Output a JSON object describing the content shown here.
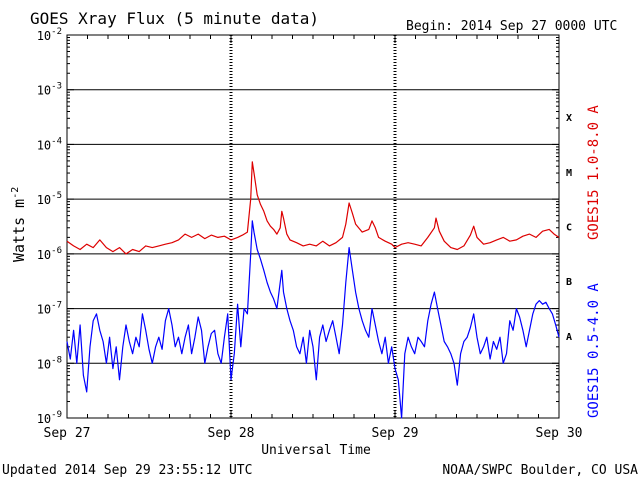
{
  "chart_data": {
    "type": "line",
    "title": "GOES Xray Flux (5 minute data)",
    "begin": "Begin:  2014 Sep 27 0000 UTC",
    "xlabel": "Universal Time",
    "ylabel": "Watts m",
    "ylabel_exponent": "-2",
    "footer_left": "Updated 2014 Sep 29 23:55:12 UTC",
    "footer_right": "NOAA/SWPC Boulder, CO USA",
    "x_ticks": [
      "Sep 27",
      "Sep 28",
      "Sep 29",
      "Sep 30"
    ],
    "x_range_days": [
      0,
      3
    ],
    "y_scale": "log",
    "y_ticks": [
      {
        "base": "10",
        "exp": "-9",
        "value": 1e-09
      },
      {
        "base": "10",
        "exp": "-8",
        "value": 1e-08
      },
      {
        "base": "10",
        "exp": "-7",
        "value": 1e-07
      },
      {
        "base": "10",
        "exp": "-6",
        "value": 1e-06
      },
      {
        "base": "10",
        "exp": "-5",
        "value": 1e-05
      },
      {
        "base": "10",
        "exp": "-4",
        "value": 0.0001
      },
      {
        "base": "10",
        "exp": "-3",
        "value": 0.001
      },
      {
        "base": "10",
        "exp": "-2",
        "value": 0.01
      }
    ],
    "ylim": [
      1e-09,
      0.01
    ],
    "flare_classes": [
      {
        "label": "A",
        "value": 3.16e-08
      },
      {
        "label": "B",
        "value": 3.16e-07
      },
      {
        "label": "C",
        "value": 3.16e-06
      },
      {
        "label": "M",
        "value": 3.16e-05
      },
      {
        "label": "X",
        "value": 0.000316
      }
    ],
    "series": [
      {
        "name": "GOES15 1.0-8.0 A",
        "color": "#dd0000",
        "points": [
          [
            0.0,
            1.7e-06
          ],
          [
            0.04,
            1.4e-06
          ],
          [
            0.08,
            1.2e-06
          ],
          [
            0.12,
            1.5e-06
          ],
          [
            0.16,
            1.3e-06
          ],
          [
            0.2,
            1.8e-06
          ],
          [
            0.24,
            1.3e-06
          ],
          [
            0.28,
            1.1e-06
          ],
          [
            0.32,
            1.3e-06
          ],
          [
            0.36,
            1e-06
          ],
          [
            0.4,
            1.2e-06
          ],
          [
            0.44,
            1.1e-06
          ],
          [
            0.48,
            1.4e-06
          ],
          [
            0.52,
            1.3e-06
          ],
          [
            0.56,
            1.4e-06
          ],
          [
            0.6,
            1.5e-06
          ],
          [
            0.64,
            1.6e-06
          ],
          [
            0.68,
            1.8e-06
          ],
          [
            0.72,
            2.3e-06
          ],
          [
            0.76,
            2e-06
          ],
          [
            0.8,
            2.3e-06
          ],
          [
            0.84,
            1.9e-06
          ],
          [
            0.88,
            2.2e-06
          ],
          [
            0.92,
            2e-06
          ],
          [
            0.96,
            2.1e-06
          ],
          [
            1.0,
            1.8e-06
          ],
          [
            1.04,
            2e-06
          ],
          [
            1.07,
            2.2e-06
          ],
          [
            1.1,
            2.5e-06
          ],
          [
            1.12,
            1e-05
          ],
          [
            1.13,
            4.8e-05
          ],
          [
            1.14,
            3e-05
          ],
          [
            1.16,
            1.2e-05
          ],
          [
            1.18,
            8e-06
          ],
          [
            1.2,
            6e-06
          ],
          [
            1.22,
            4e-06
          ],
          [
            1.24,
            3.2e-06
          ],
          [
            1.26,
            2.8e-06
          ],
          [
            1.28,
            2.3e-06
          ],
          [
            1.3,
            3e-06
          ],
          [
            1.31,
            6e-06
          ],
          [
            1.32,
            4.5e-06
          ],
          [
            1.34,
            2.3e-06
          ],
          [
            1.36,
            1.8e-06
          ],
          [
            1.4,
            1.6e-06
          ],
          [
            1.44,
            1.4e-06
          ],
          [
            1.48,
            1.5e-06
          ],
          [
            1.52,
            1.4e-06
          ],
          [
            1.56,
            1.7e-06
          ],
          [
            1.6,
            1.4e-06
          ],
          [
            1.64,
            1.6e-06
          ],
          [
            1.68,
            2e-06
          ],
          [
            1.7,
            3.5e-06
          ],
          [
            1.72,
            8.5e-06
          ],
          [
            1.74,
            5.5e-06
          ],
          [
            1.76,
            3.5e-06
          ],
          [
            1.8,
            2.5e-06
          ],
          [
            1.84,
            2.8e-06
          ],
          [
            1.86,
            4e-06
          ],
          [
            1.88,
            3e-06
          ],
          [
            1.9,
            2e-06
          ],
          [
            1.94,
            1.7e-06
          ],
          [
            1.98,
            1.5e-06
          ],
          [
            2.0,
            1.3e-06
          ],
          [
            2.04,
            1.5e-06
          ],
          [
            2.08,
            1.6e-06
          ],
          [
            2.12,
            1.5e-06
          ],
          [
            2.16,
            1.4e-06
          ],
          [
            2.2,
            2e-06
          ],
          [
            2.24,
            3e-06
          ],
          [
            2.25,
            4.5e-06
          ],
          [
            2.27,
            2.6e-06
          ],
          [
            2.3,
            1.7e-06
          ],
          [
            2.34,
            1.3e-06
          ],
          [
            2.38,
            1.2e-06
          ],
          [
            2.42,
            1.4e-06
          ],
          [
            2.46,
            2.2e-06
          ],
          [
            2.48,
            3.2e-06
          ],
          [
            2.5,
            2e-06
          ],
          [
            2.54,
            1.5e-06
          ],
          [
            2.58,
            1.6e-06
          ],
          [
            2.62,
            1.8e-06
          ],
          [
            2.66,
            2e-06
          ],
          [
            2.7,
            1.7e-06
          ],
          [
            2.74,
            1.8e-06
          ],
          [
            2.78,
            2.1e-06
          ],
          [
            2.82,
            2.3e-06
          ],
          [
            2.86,
            2e-06
          ],
          [
            2.9,
            2.6e-06
          ],
          [
            2.94,
            2.8e-06
          ],
          [
            2.97,
            2.3e-06
          ],
          [
            3.0,
            2e-06
          ]
        ]
      },
      {
        "name": "GOES15 0.5-4.0 A",
        "color": "#0000ff",
        "points": [
          [
            0.0,
            2.5e-08
          ],
          [
            0.02,
            1.2e-08
          ],
          [
            0.04,
            4e-08
          ],
          [
            0.06,
            1e-08
          ],
          [
            0.08,
            5e-08
          ],
          [
            0.1,
            6e-09
          ],
          [
            0.12,
            3e-09
          ],
          [
            0.14,
            2e-08
          ],
          [
            0.16,
            6e-08
          ],
          [
            0.18,
            8e-08
          ],
          [
            0.2,
            4e-08
          ],
          [
            0.22,
            2.5e-08
          ],
          [
            0.24,
            1e-08
          ],
          [
            0.26,
            3e-08
          ],
          [
            0.28,
            8e-09
          ],
          [
            0.3,
            2e-08
          ],
          [
            0.32,
            5e-09
          ],
          [
            0.34,
            2e-08
          ],
          [
            0.36,
            5e-08
          ],
          [
            0.38,
            2.5e-08
          ],
          [
            0.4,
            1.5e-08
          ],
          [
            0.42,
            3e-08
          ],
          [
            0.44,
            2e-08
          ],
          [
            0.46,
            8e-08
          ],
          [
            0.48,
            4e-08
          ],
          [
            0.5,
            1.8e-08
          ],
          [
            0.52,
            1e-08
          ],
          [
            0.54,
            2e-08
          ],
          [
            0.56,
            3e-08
          ],
          [
            0.58,
            1.8e-08
          ],
          [
            0.6,
            6e-08
          ],
          [
            0.62,
            1e-07
          ],
          [
            0.64,
            5e-08
          ],
          [
            0.66,
            2e-08
          ],
          [
            0.68,
            3e-08
          ],
          [
            0.7,
            1.5e-08
          ],
          [
            0.72,
            3e-08
          ],
          [
            0.74,
            5e-08
          ],
          [
            0.76,
            1.5e-08
          ],
          [
            0.78,
            3e-08
          ],
          [
            0.8,
            7e-08
          ],
          [
            0.82,
            4e-08
          ],
          [
            0.84,
            1e-08
          ],
          [
            0.86,
            2e-08
          ],
          [
            0.88,
            3.5e-08
          ],
          [
            0.9,
            4e-08
          ],
          [
            0.92,
            1.5e-08
          ],
          [
            0.94,
            1e-08
          ],
          [
            0.96,
            3e-08
          ],
          [
            0.98,
            8e-08
          ],
          [
            1.0,
            5e-09
          ],
          [
            1.02,
            1.5e-08
          ],
          [
            1.04,
            1.2e-07
          ],
          [
            1.06,
            2e-08
          ],
          [
            1.08,
            1e-07
          ],
          [
            1.1,
            8e-08
          ],
          [
            1.12,
            1e-06
          ],
          [
            1.13,
            4e-06
          ],
          [
            1.14,
            2.5e-06
          ],
          [
            1.16,
            1.2e-06
          ],
          [
            1.18,
            8e-07
          ],
          [
            1.2,
            5e-07
          ],
          [
            1.22,
            3e-07
          ],
          [
            1.24,
            2e-07
          ],
          [
            1.26,
            1.5e-07
          ],
          [
            1.28,
            1e-07
          ],
          [
            1.3,
            3e-07
          ],
          [
            1.31,
            5e-07
          ],
          [
            1.32,
            2e-07
          ],
          [
            1.34,
            1e-07
          ],
          [
            1.36,
            6e-08
          ],
          [
            1.38,
            4e-08
          ],
          [
            1.4,
            2e-08
          ],
          [
            1.42,
            1.5e-08
          ],
          [
            1.44,
            3e-08
          ],
          [
            1.46,
            1e-08
          ],
          [
            1.48,
            4e-08
          ],
          [
            1.5,
            2e-08
          ],
          [
            1.52,
            5e-09
          ],
          [
            1.54,
            3e-08
          ],
          [
            1.56,
            5e-08
          ],
          [
            1.58,
            2.5e-08
          ],
          [
            1.6,
            4e-08
          ],
          [
            1.62,
            6e-08
          ],
          [
            1.64,
            3e-08
          ],
          [
            1.66,
            1.5e-08
          ],
          [
            1.68,
            5e-08
          ],
          [
            1.7,
            3e-07
          ],
          [
            1.72,
            1.3e-06
          ],
          [
            1.74,
            5e-07
          ],
          [
            1.76,
            2e-07
          ],
          [
            1.78,
            1e-07
          ],
          [
            1.8,
            6e-08
          ],
          [
            1.82,
            4e-08
          ],
          [
            1.84,
            3e-08
          ],
          [
            1.86,
            1e-07
          ],
          [
            1.88,
            5e-08
          ],
          [
            1.9,
            2.5e-08
          ],
          [
            1.92,
            1.5e-08
          ],
          [
            1.94,
            3e-08
          ],
          [
            1.96,
            1e-08
          ],
          [
            1.98,
            2e-08
          ],
          [
            2.0,
            8e-09
          ],
          [
            2.02,
            5e-09
          ],
          [
            2.04,
            1e-09
          ],
          [
            2.06,
            1.5e-08
          ],
          [
            2.08,
            3e-08
          ],
          [
            2.1,
            2e-08
          ],
          [
            2.12,
            1.5e-08
          ],
          [
            2.14,
            3e-08
          ],
          [
            2.16,
            2.5e-08
          ],
          [
            2.18,
            2e-08
          ],
          [
            2.2,
            6e-08
          ],
          [
            2.22,
            1.2e-07
          ],
          [
            2.24,
            2e-07
          ],
          [
            2.26,
            1e-07
          ],
          [
            2.28,
            5e-08
          ],
          [
            2.3,
            2.5e-08
          ],
          [
            2.32,
            2e-08
          ],
          [
            2.34,
            1.5e-08
          ],
          [
            2.36,
            1e-08
          ],
          [
            2.38,
            4e-09
          ],
          [
            2.4,
            1.5e-08
          ],
          [
            2.42,
            2.5e-08
          ],
          [
            2.44,
            3e-08
          ],
          [
            2.46,
            4.5e-08
          ],
          [
            2.48,
            8e-08
          ],
          [
            2.5,
            3e-08
          ],
          [
            2.52,
            1.5e-08
          ],
          [
            2.54,
            2e-08
          ],
          [
            2.56,
            3e-08
          ],
          [
            2.58,
            1.2e-08
          ],
          [
            2.6,
            2.5e-08
          ],
          [
            2.62,
            1.8e-08
          ],
          [
            2.64,
            3e-08
          ],
          [
            2.66,
            1e-08
          ],
          [
            2.68,
            1.5e-08
          ],
          [
            2.7,
            6e-08
          ],
          [
            2.72,
            4e-08
          ],
          [
            2.74,
            1e-07
          ],
          [
            2.76,
            7e-08
          ],
          [
            2.78,
            4e-08
          ],
          [
            2.8,
            2e-08
          ],
          [
            2.82,
            4e-08
          ],
          [
            2.84,
            8e-08
          ],
          [
            2.86,
            1.2e-07
          ],
          [
            2.88,
            1.4e-07
          ],
          [
            2.9,
            1.2e-07
          ],
          [
            2.92,
            1.3e-07
          ],
          [
            2.94,
            1e-07
          ],
          [
            2.96,
            8e-08
          ],
          [
            2.98,
            5e-08
          ],
          [
            3.0,
            3e-08
          ]
        ]
      }
    ]
  }
}
